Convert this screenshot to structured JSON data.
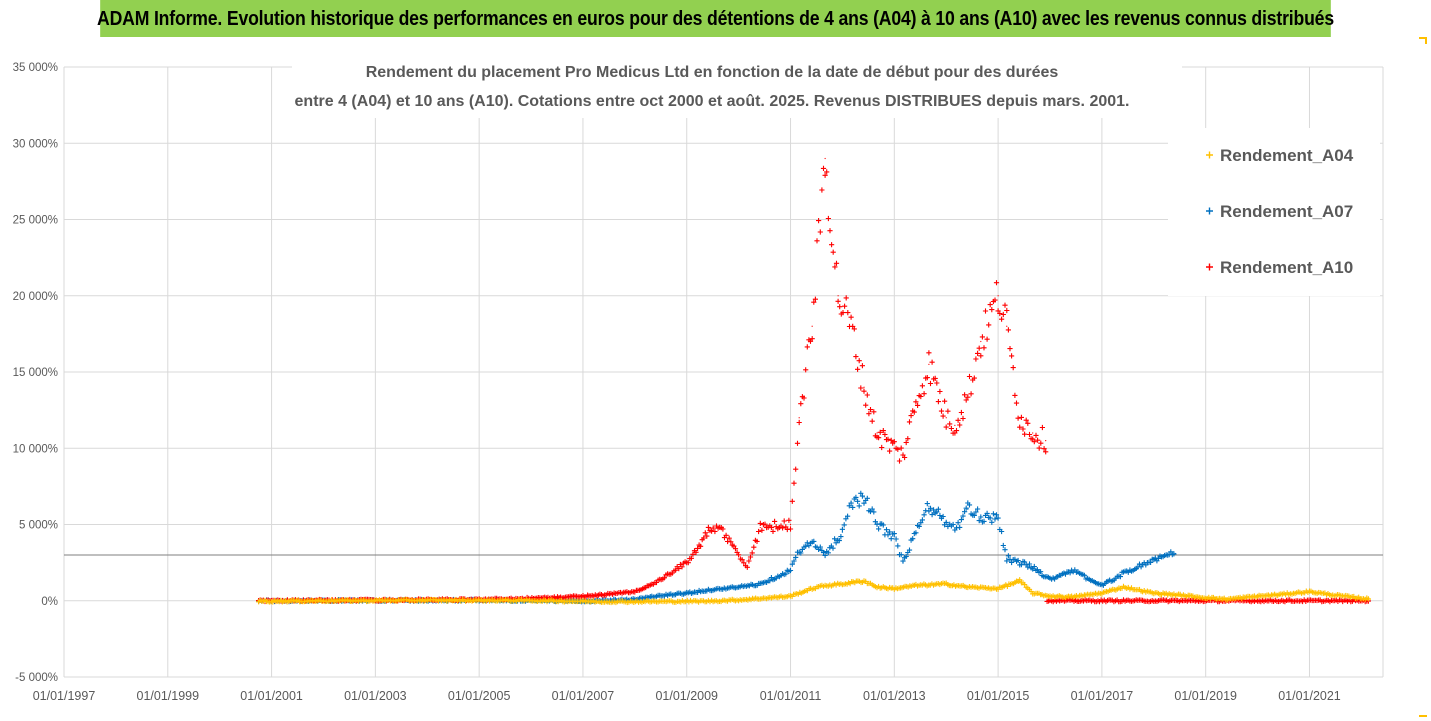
{
  "banner": {
    "text": "ADAM Informe. Evolution historique des performances en euros pour des détentions de 4 ans (A04) à 10 ans (A10) avec les revenus connus distribués"
  },
  "chart_data": {
    "type": "scatter",
    "title": "Rendement du placement Pro Medicus Ltd en fonction de la date de début pour des durées",
    "subtitle": "entre 4 (A04) et 10 ans (A10). Cotations entre oct 2000 et août. 2025. Revenus DISTRIBUES depuis mars. 2001.",
    "xlabel": "",
    "ylabel": "",
    "x_range": [
      "01/01/1997",
      "01/06/2022"
    ],
    "ylim": [
      -5000,
      35000
    ],
    "y_ticks": [
      -5000,
      0,
      5000,
      10000,
      15000,
      20000,
      25000,
      30000,
      35000
    ],
    "y_tick_labels": [
      "-5 000%",
      "0%",
      "5 000%",
      "10 000%",
      "15 000%",
      "20 000%",
      "25 000%",
      "30 000%",
      "35 000%"
    ],
    "x_tick_labels": [
      "01/01/1997",
      "01/01/1999",
      "01/01/2001",
      "01/01/2003",
      "01/01/2005",
      "01/01/2007",
      "01/01/2009",
      "01/01/2011",
      "01/01/2013",
      "01/01/2015",
      "01/01/2017",
      "01/01/2019",
      "01/01/2021"
    ],
    "reference_line_y": 3000,
    "grid": true,
    "legend_position": "right",
    "marker": "+",
    "series": [
      {
        "name": "Rendement_A04",
        "color": "#ffc000",
        "points": [
          [
            "2000-10",
            -30
          ],
          [
            "2002-01",
            0
          ],
          [
            "2004-01",
            30
          ],
          [
            "2006-01",
            20
          ],
          [
            "2007-06",
            -60
          ],
          [
            "2008-06",
            -50
          ],
          [
            "2009-06",
            -30
          ],
          [
            "2010-01",
            50
          ],
          [
            "2010-06",
            150
          ],
          [
            "2011-01",
            300
          ],
          [
            "2011-06",
            800
          ],
          [
            "2011-09",
            1000
          ],
          [
            "2012-01",
            1100
          ],
          [
            "2012-06",
            1300
          ],
          [
            "2012-09",
            900
          ],
          [
            "2013-01",
            800
          ],
          [
            "2013-06",
            1000
          ],
          [
            "2014-01",
            1100
          ],
          [
            "2014-06",
            900
          ],
          [
            "2015-01",
            800
          ],
          [
            "2015-06",
            1300
          ],
          [
            "2015-09",
            500
          ],
          [
            "2016-01",
            300
          ],
          [
            "2016-06",
            250
          ],
          [
            "2017-01",
            500
          ],
          [
            "2017-06",
            900
          ],
          [
            "2018-01",
            500
          ],
          [
            "2018-06",
            400
          ],
          [
            "2019-01",
            200
          ],
          [
            "2019-06",
            100
          ],
          [
            "2020-01",
            300
          ],
          [
            "2020-06",
            400
          ],
          [
            "2021-01",
            600
          ],
          [
            "2021-06",
            400
          ],
          [
            "2022-03",
            100
          ]
        ]
      },
      {
        "name": "Rendement_A07",
        "color": "#0070c0",
        "points": [
          [
            "2000-10",
            0
          ],
          [
            "2003-01",
            20
          ],
          [
            "2005-01",
            40
          ],
          [
            "2007-01",
            -20
          ],
          [
            "2008-01",
            100
          ],
          [
            "2008-06",
            300
          ],
          [
            "2009-01",
            500
          ],
          [
            "2009-06",
            700
          ],
          [
            "2010-01",
            900
          ],
          [
            "2010-06",
            1100
          ],
          [
            "2011-01",
            2000
          ],
          [
            "2011-03",
            3300
          ],
          [
            "2011-06",
            3800
          ],
          [
            "2011-09",
            3000
          ],
          [
            "2012-01",
            4500
          ],
          [
            "2012-03",
            6500
          ],
          [
            "2012-06",
            6800
          ],
          [
            "2012-09",
            5000
          ],
          [
            "2013-01",
            4200
          ],
          [
            "2013-03",
            2500
          ],
          [
            "2013-06",
            4500
          ],
          [
            "2013-09",
            6200
          ],
          [
            "2014-01",
            5200
          ],
          [
            "2014-03",
            4600
          ],
          [
            "2014-06",
            6000
          ],
          [
            "2014-09",
            5500
          ],
          [
            "2015-01",
            5500
          ],
          [
            "2015-03",
            2800
          ],
          [
            "2015-06",
            2500
          ],
          [
            "2015-09",
            2200
          ],
          [
            "2016-01",
            1400
          ],
          [
            "2016-06",
            2000
          ],
          [
            "2017-01",
            1000
          ],
          [
            "2017-06",
            1800
          ],
          [
            "2018-01",
            2700
          ],
          [
            "2018-06",
            3100
          ]
        ]
      },
      {
        "name": "Rendement_A10",
        "color": "#ff0000",
        "points": [
          [
            "2000-10",
            0
          ],
          [
            "2003-01",
            40
          ],
          [
            "2005-01",
            80
          ],
          [
            "2006-06",
            200
          ],
          [
            "2007-01",
            300
          ],
          [
            "2007-06",
            400
          ],
          [
            "2008-01",
            600
          ],
          [
            "2008-06",
            1200
          ],
          [
            "2009-01",
            2500
          ],
          [
            "2009-06",
            4500
          ],
          [
            "2009-09",
            4700
          ],
          [
            "2010-01",
            3000
          ],
          [
            "2010-03",
            2200
          ],
          [
            "2010-06",
            4800
          ],
          [
            "2011-01",
            5000
          ],
          [
            "2011-03",
            12000
          ],
          [
            "2011-06",
            18000
          ],
          [
            "2011-09",
            29000
          ],
          [
            "2011-12",
            20000
          ],
          [
            "2012-03",
            18000
          ],
          [
            "2012-06",
            14000
          ],
          [
            "2012-09",
            11000
          ],
          [
            "2013-01",
            10000
          ],
          [
            "2013-03",
            9500
          ],
          [
            "2013-06",
            13000
          ],
          [
            "2013-09",
            15500
          ],
          [
            "2014-01",
            12000
          ],
          [
            "2014-03",
            11500
          ],
          [
            "2014-06",
            13500
          ],
          [
            "2014-09",
            17000
          ],
          [
            "2015-01",
            20000
          ],
          [
            "2015-03",
            18000
          ],
          [
            "2015-06",
            12000
          ],
          [
            "2015-09",
            11000
          ],
          [
            "2015-12",
            10500
          ],
          [
            "2016-01",
            0
          ],
          [
            "2018-01",
            0
          ],
          [
            "2020-01",
            0
          ],
          [
            "2022-03",
            0
          ]
        ]
      }
    ]
  }
}
